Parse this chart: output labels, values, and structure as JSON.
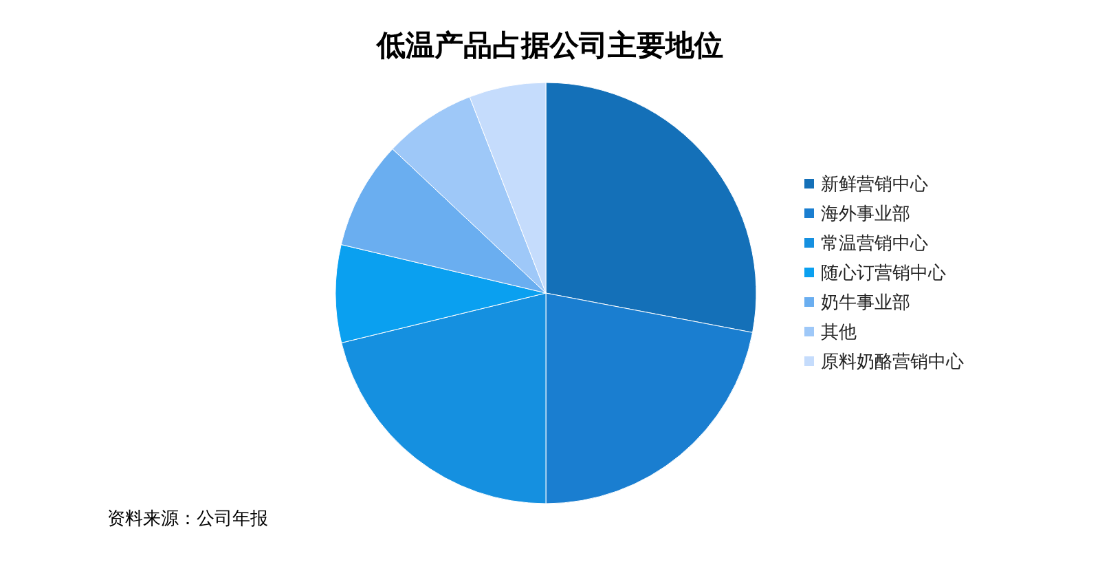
{
  "chart_data": {
    "type": "pie",
    "title": "低温产品占据公司主要地位",
    "categories": [
      "新鲜营销中心",
      "海外事业部",
      "常温营销中心",
      "随心订营销中心",
      "奶牛事业部",
      "其他",
      "原料奶酪营销中心"
    ],
    "values": [
      28,
      22,
      21.2,
      7.5,
      8.3,
      7.1,
      5.9
    ],
    "colors": [
      "#1470b8",
      "#1a7ed0",
      "#1590e0",
      "#0aa0f0",
      "#6aaef0",
      "#9ec8f8",
      "#c5dcfc"
    ],
    "legend": "right",
    "annotations": [
      "资料来源：公司年报"
    ]
  }
}
